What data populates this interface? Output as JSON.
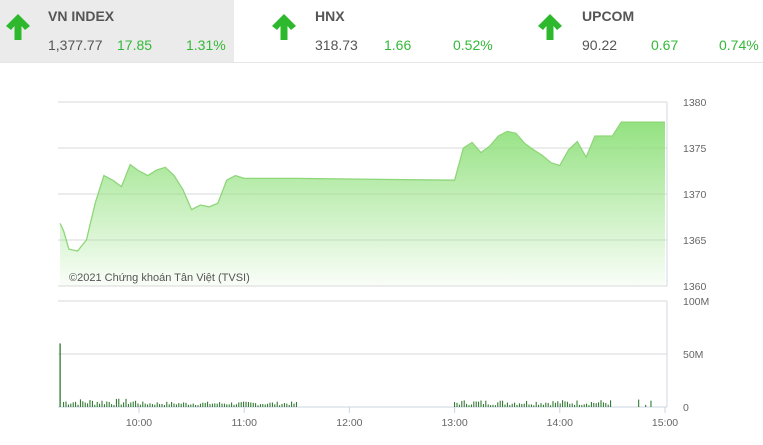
{
  "indices": [
    {
      "name": "VN INDEX",
      "value": "1,377.77",
      "change": "17.85",
      "percent": "1.31%",
      "direction": "up",
      "active": true
    },
    {
      "name": "HNX",
      "value": "318.73",
      "change": "1.66",
      "percent": "0.52%",
      "direction": "up",
      "active": false
    },
    {
      "name": "UPCOM",
      "value": "90.22",
      "change": "0.67",
      "percent": "0.74%",
      "direction": "up",
      "active": false
    }
  ],
  "colors": {
    "up": "#34b838",
    "arrow": "#2db82d",
    "line": "#8ed67a",
    "fill_top": "#8ee07a",
    "volume_bar": "#1e6e1e",
    "grid": "#d9d9d9"
  },
  "icons": {
    "up_arrow": "arrow-up-icon"
  },
  "copyright": "©2021 Chứng khoán Tân Việt (TVSI)",
  "chart_data": [
    {
      "type": "area",
      "title": "VN INDEX intraday",
      "xlabel": "",
      "ylabel": "",
      "ylim": [
        1360,
        1380
      ],
      "yticks": [
        "1380",
        "1375",
        "1370",
        "1365",
        "1360"
      ],
      "grid": true,
      "x": [
        "09:15",
        "09:17",
        "09:20",
        "09:25",
        "09:30",
        "09:35",
        "09:40",
        "09:45",
        "09:50",
        "09:55",
        "10:00",
        "10:05",
        "10:10",
        "10:15",
        "10:20",
        "10:25",
        "10:30",
        "10:35",
        "10:40",
        "10:45",
        "10:50",
        "10:55",
        "11:00",
        "11:05",
        "11:10",
        "11:15",
        "11:20",
        "11:25",
        "11:30",
        "13:00",
        "13:05",
        "13:10",
        "13:15",
        "13:20",
        "13:25",
        "13:30",
        "13:35",
        "13:40",
        "13:45",
        "13:50",
        "13:55",
        "14:00",
        "14:05",
        "14:10",
        "14:15",
        "14:20",
        "14:25",
        "14:30",
        "14:35",
        "14:40",
        "14:45",
        "14:46",
        "15:00"
      ],
      "values": [
        1366.8,
        1366.0,
        1364.0,
        1363.8,
        1365.0,
        1369.0,
        1372.0,
        1371.5,
        1370.8,
        1373.2,
        1372.5,
        1372.0,
        1372.6,
        1372.9,
        1372.0,
        1370.5,
        1368.3,
        1368.8,
        1368.6,
        1369.0,
        1371.5,
        1372.0,
        1371.7,
        1371.7,
        1371.7,
        1371.7,
        1371.7,
        1371.7,
        1371.7,
        1371.5,
        1375.0,
        1375.6,
        1374.5,
        1375.2,
        1376.3,
        1376.8,
        1376.6,
        1375.5,
        1374.8,
        1374.2,
        1373.4,
        1373.1,
        1374.8,
        1375.7,
        1374.0,
        1376.3,
        1376.3,
        1376.3,
        1377.8,
        1377.8,
        1377.8,
        1377.8,
        1377.8
      ]
    },
    {
      "type": "bar",
      "title": "Volume",
      "ylim": [
        0,
        100
      ],
      "yunit": "M",
      "yticks": [
        "100M",
        "50M",
        "0"
      ],
      "xticks": [
        "10:00",
        "11:00",
        "12:00",
        "13:00",
        "14:00",
        "15:00"
      ],
      "peak": {
        "time": "09:15",
        "value": 60
      },
      "typical_morning": 4,
      "typical_afternoon": 4
    }
  ]
}
